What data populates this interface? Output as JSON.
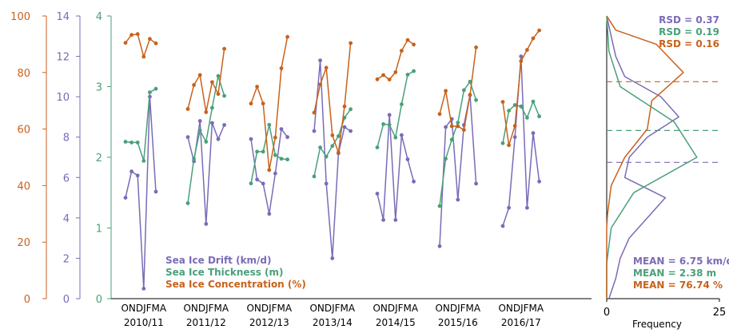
{
  "colors": {
    "drift": "#7a6bb8",
    "thickness": "#4aa07a",
    "concentration": "#c8621c",
    "axis": "#000000"
  },
  "chart_data": [
    {
      "type": "line",
      "panel": "seasonal time series",
      "months_label": "ONDJFMA",
      "seasons": [
        "2010/11",
        "2011/12",
        "2012/13",
        "2013/14",
        "2014/15",
        "2015/16",
        "2016/17"
      ],
      "months": [
        "O",
        "N",
        "D",
        "J",
        "F",
        "M",
        "A"
      ],
      "axes": {
        "concentration": {
          "ylim": [
            0,
            100
          ],
          "ticks": [
            0,
            20,
            40,
            60,
            80,
            100
          ]
        },
        "drift": {
          "ylim": [
            0,
            14
          ],
          "ticks": [
            0,
            2,
            4,
            6,
            8,
            10,
            12,
            14
          ]
        },
        "thickness": {
          "ylim": [
            0,
            4
          ],
          "ticks": [
            0,
            1,
            2,
            3,
            4
          ]
        }
      },
      "legend": {
        "placement": "bottom-center",
        "entries": [
          "Sea Ice Drift (km/d)",
          "Sea Ice Thickness (m)",
          "Sea Ice Concentration (%)"
        ]
      },
      "series": [
        {
          "name": "Sea Ice Drift (km/d)",
          "axis": "drift",
          "color": "#7a6bb8",
          "values": [
            [
              5.0,
              6.3,
              6.1,
              0.5,
              10.0,
              5.3
            ],
            [
              8.0,
              6.8,
              8.8,
              3.7,
              8.7,
              7.9,
              8.6
            ],
            [
              7.9,
              5.9,
              5.7,
              4.2,
              6.2,
              8.4,
              8.0
            ],
            [
              8.3,
              11.8,
              5.7,
              2.0,
              7.2,
              8.5,
              8.3
            ],
            [
              5.2,
              3.9,
              9.1,
              3.9,
              8.1,
              6.9,
              5.8
            ],
            [
              2.6,
              8.5,
              8.9,
              4.9,
              8.6,
              10.1,
              5.7
            ],
            [
              3.6,
              4.5,
              8.0,
              12.0,
              4.5,
              8.2,
              5.8
            ]
          ]
        },
        {
          "name": "Sea Ice Thickness (m)",
          "axis": "thickness",
          "color": "#4aa07a",
          "values": [
            [
              2.22,
              2.21,
              2.21,
              1.95,
              2.92,
              2.97
            ],
            [
              1.35,
              1.98,
              2.38,
              2.22,
              2.7,
              3.15,
              2.87
            ],
            [
              1.63,
              2.08,
              2.08,
              2.46,
              2.03,
              1.98,
              1.97
            ],
            [
              1.73,
              2.14,
              2.01,
              2.16,
              2.3,
              2.56,
              2.68
            ],
            [
              2.14,
              2.47,
              2.46,
              2.28,
              2.75,
              3.17,
              3.22
            ],
            [
              1.31,
              1.98,
              2.25,
              2.49,
              2.95,
              3.07,
              2.81
            ],
            [
              2.2,
              2.66,
              2.74,
              2.72,
              2.56,
              2.79,
              2.58
            ]
          ]
        },
        {
          "name": "Sea Ice Concentration (%)",
          "axis": "concentration",
          "color": "#c8621c",
          "values": [
            [
              90.5,
              93.3,
              93.6,
              85.6,
              91.9,
              90.3
            ],
            [
              67.1,
              75.6,
              79.1,
              66.0,
              76.6,
              72.4,
              88.4
            ],
            [
              69.0,
              75.0,
              69.0,
              45.5,
              57.0,
              81.5,
              92.6
            ],
            [
              65.8,
              75.8,
              81.7,
              57.8,
              51.7,
              68.0,
              90.4
            ],
            [
              77.6,
              79.1,
              77.5,
              80.1,
              87.7,
              91.5,
              89.9
            ],
            [
              65.3,
              73.5,
              61.0,
              61.0,
              59.7,
              72.0,
              88.9
            ],
            [
              69.6,
              54.3,
              61.1,
              84.0,
              88.0,
              92.1,
              94.9
            ]
          ]
        }
      ]
    },
    {
      "type": "line",
      "panel": "frequency distribution",
      "xlabel": "Frequency",
      "xlim": [
        0,
        25
      ],
      "x_ticks": [
        0,
        25
      ],
      "stats": [
        {
          "label": "RSD = 0.37",
          "color": "#7a6bb8"
        },
        {
          "label": "RSD = 0.19",
          "color": "#4aa07a"
        },
        {
          "label": "RSD = 0.16",
          "color": "#c8621c"
        }
      ],
      "means": [
        {
          "label": "MEAN = 6.75 km/d",
          "color": "#7a6bb8",
          "value": 6.75,
          "axis": "drift"
        },
        {
          "label": "MEAN = 2.38 m",
          "color": "#4aa07a",
          "value": 2.38,
          "axis": "thickness"
        },
        {
          "label": "MEAN = 76.74 %",
          "color": "#c8621c",
          "value": 76.74,
          "axis": "concentration"
        }
      ],
      "series": [
        {
          "name": "Sea Ice Drift (km/d)",
          "color": "#7a6bb8",
          "axis": "drift",
          "bin_centers": [
            0,
            1,
            2,
            3,
            4,
            5,
            6,
            7,
            8,
            9,
            10,
            11,
            12,
            13,
            14
          ],
          "frequencies": [
            0.5,
            2,
            3,
            5,
            9,
            13,
            4,
            5,
            9,
            16,
            12,
            4,
            2,
            1,
            0
          ]
        },
        {
          "name": "Sea Ice Thickness (m)",
          "color": "#4aa07a",
          "axis": "thickness",
          "bin_centers": [
            0,
            0.5,
            1.0,
            1.5,
            2.0,
            2.5,
            3.0,
            3.5,
            4.0
          ],
          "frequencies": [
            0,
            0,
            1,
            6,
            20,
            15,
            3,
            0.5,
            0
          ]
        },
        {
          "name": "Sea Ice Concentration (%)",
          "color": "#c8621c",
          "axis": "concentration",
          "bin_centers": [
            0,
            20,
            25,
            30,
            40,
            50,
            60,
            70,
            80,
            90,
            95,
            100
          ],
          "frequencies": [
            0,
            0,
            0,
            0.2,
            1,
            4,
            9,
            10,
            17,
            11,
            2,
            0
          ]
        }
      ]
    }
  ]
}
